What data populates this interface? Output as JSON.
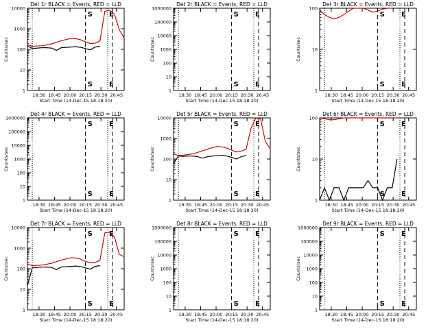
{
  "colors": {
    "events": "#000000",
    "lld": "#d00000",
    "axes": "#000000",
    "background": "#ffffff"
  },
  "panel_titles": [
    "Det 1r BLACK = Events, RED = LLD",
    "Det 2r BLACK = Events, RED = LLD",
    "Det 3r BLACK = Events, RED = LLD",
    "Det 4r BLACK = Events, RED = LLD",
    "Det 5r BLACK = Events, RED = LLD",
    "Det 6r BLACK = Events, RED = LLD",
    "Det 7r BLACK = Events, RED = LLD",
    "Det 8r BLACK = Events, RED = LLD",
    "Det 9r BLACK = Events, RED = LLD"
  ],
  "xlabel": "Start Time (14-Dec-15 18:18:20)",
  "ylabel": "Counts/sec",
  "xticks": [
    "18:30",
    "18:45",
    "20:00",
    "20:15",
    "20:30",
    "20:45"
  ],
  "marker_labels": {
    "start": "S",
    "end": "E"
  },
  "chart_data": [
    {
      "type": "line",
      "title": "Det 1r BLACK = Events, RED = LLD",
      "yscale": "log",
      "ylim": [
        1,
        10000
      ],
      "yticks": [
        "1",
        "10",
        "100",
        "1000",
        "10000"
      ],
      "x": [
        0,
        10,
        20,
        30,
        40,
        50,
        60,
        70,
        80,
        90,
        100,
        110,
        120,
        130,
        140,
        150,
        160,
        170,
        180,
        190,
        200
      ],
      "series": [
        {
          "name": "Events",
          "color": "#000000",
          "values": [
            150,
            110,
            115,
            120,
            120,
            115,
            90,
            120,
            125,
            130,
            135,
            125,
            110,
            95,
            130,
            140,
            null,
            null,
            null,
            null,
            null
          ]
        },
        {
          "name": "LLD",
          "color": "#d00000",
          "values": [
            170,
            140,
            145,
            150,
            165,
            185,
            220,
            260,
            300,
            340,
            330,
            290,
            230,
            190,
            200,
            260,
            7000,
            8000,
            5000,
            900,
            350
          ]
        }
      ]
    },
    {
      "type": "line",
      "title": "Det 2r BLACK = Events, RED = LLD",
      "yscale": "log",
      "ylim": [
        1,
        1000000
      ],
      "yticks": [
        "1",
        "10",
        "100",
        "1000",
        "10000",
        "100000",
        "1000000"
      ],
      "series": []
    },
    {
      "type": "line",
      "title": "Det 3r BLACK = Events, RED = LLD",
      "yscale": "log",
      "ylim": [
        1,
        100
      ],
      "yticks": [
        "1",
        "10",
        "100"
      ],
      "x": [
        0,
        10,
        20,
        30,
        40,
        50,
        60,
        70,
        80,
        90,
        100,
        110,
        120,
        130,
        140,
        150
      ],
      "series": [
        {
          "name": "LLD",
          "color": "#d00000",
          "values": [
            90,
            70,
            60,
            55,
            60,
            70,
            85,
            100,
            100,
            100,
            90,
            80,
            85,
            95,
            100,
            100
          ]
        }
      ]
    },
    {
      "type": "line",
      "title": "Det 4r BLACK = Events, RED = LLD",
      "yscale": "log",
      "ylim": [
        1,
        1000000
      ],
      "yticks": [
        "1",
        "10",
        "100",
        "1000",
        "10000",
        "100000",
        "1000000"
      ],
      "series": []
    },
    {
      "type": "line",
      "title": "Det 5r BLACK = Events, RED = LLD",
      "yscale": "log",
      "ylim": [
        1,
        10000
      ],
      "yticks": [
        "1",
        "10",
        "100",
        "1000",
        "10000"
      ],
      "x": [
        0,
        10,
        20,
        30,
        40,
        50,
        60,
        70,
        80,
        90,
        100,
        110,
        120,
        130,
        140,
        150,
        160,
        170,
        180,
        190,
        200
      ],
      "series": [
        {
          "name": "Events",
          "color": "#000000",
          "values": [
            60,
            140,
            135,
            140,
            140,
            130,
            110,
            130,
            140,
            145,
            150,
            140,
            120,
            100,
            130,
            150,
            null,
            null,
            null,
            null,
            null
          ]
        },
        {
          "name": "LLD",
          "color": "#d00000",
          "values": [
            170,
            150,
            155,
            165,
            180,
            210,
            250,
            300,
            360,
            400,
            390,
            340,
            270,
            220,
            240,
            300,
            3000,
            10000,
            9000,
            700,
            320
          ]
        }
      ]
    },
    {
      "type": "line",
      "title": "Det 6r BLACK = Events, RED = LLD",
      "yscale": "log",
      "ylim": [
        1,
        100
      ],
      "yticks": [
        "1",
        "10",
        "100"
      ],
      "x": [
        0,
        10,
        20,
        30,
        40,
        50,
        60,
        70,
        80,
        90,
        100,
        110,
        120,
        130,
        140,
        150,
        160
      ],
      "series": [
        {
          "name": "Events",
          "color": "#000000",
          "values": [
            1,
            2,
            1,
            2,
            2,
            1,
            2,
            2,
            2,
            2,
            3,
            2,
            2,
            1,
            2,
            2,
            10
          ]
        },
        {
          "name": "LLD",
          "color": "#d00000",
          "values": [
            100,
            95,
            90,
            90,
            95,
            100,
            100,
            100,
            100,
            100,
            100,
            100,
            100,
            100,
            100,
            100,
            100
          ]
        }
      ]
    },
    {
      "type": "line",
      "title": "Det 7r BLACK = Events, RED = LLD",
      "yscale": "log",
      "ylim": [
        1,
        10000
      ],
      "yticks": [
        "1",
        "10",
        "100",
        "1000",
        "10000"
      ],
      "x": [
        0,
        10,
        20,
        30,
        40,
        50,
        60,
        70,
        80,
        90,
        100,
        110,
        120,
        130,
        140,
        150,
        160,
        170,
        180,
        190,
        200
      ],
      "series": [
        {
          "name": "Events",
          "color": "#000000",
          "values": [
            15,
            110,
            115,
            120,
            120,
            115,
            90,
            120,
            125,
            130,
            135,
            125,
            110,
            95,
            130,
            140,
            null,
            null,
            null,
            null,
            null
          ]
        },
        {
          "name": "LLD",
          "color": "#d00000",
          "values": [
            170,
            140,
            145,
            150,
            165,
            185,
            220,
            260,
            300,
            340,
            330,
            290,
            230,
            190,
            200,
            260,
            5500,
            6000,
            3500,
            500,
            380
          ]
        }
      ]
    },
    {
      "type": "line",
      "title": "Det 8r BLACK = Events, RED = LLD",
      "yscale": "log",
      "ylim": [
        1,
        1000000
      ],
      "yticks": [
        "1",
        "10",
        "100",
        "1000",
        "10000",
        "100000",
        "1000000"
      ],
      "series": []
    },
    {
      "type": "line",
      "title": "Det 9r BLACK = Events, RED = LLD",
      "yscale": "log",
      "ylim": [
        1,
        1000000
      ],
      "yticks": [
        "1",
        "10",
        "100",
        "1000",
        "10000",
        "100000",
        "1000000"
      ],
      "series": []
    }
  ]
}
